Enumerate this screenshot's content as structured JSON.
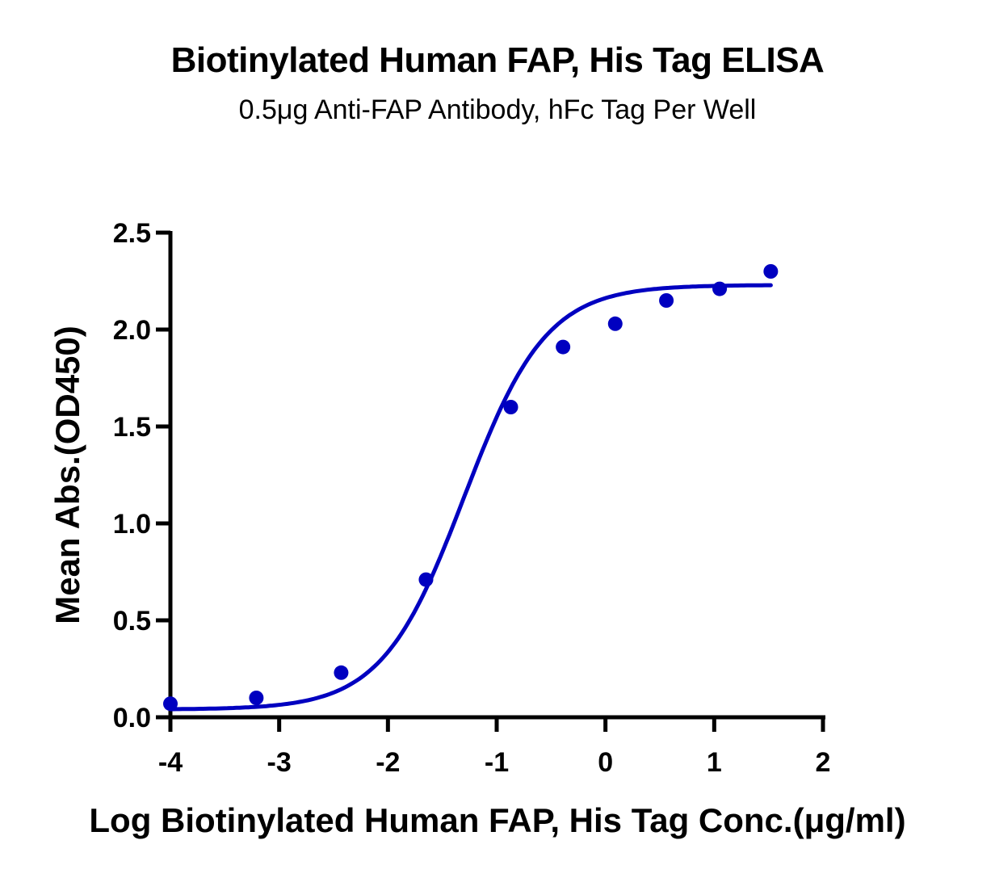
{
  "chart_data": {
    "type": "scatter",
    "title": "Biotinylated Human FAP, His Tag ELISA",
    "subtitle": "0.5μg Anti-FAP Antibody, hFc Tag Per Well",
    "xlabel": "Log Biotinylated Human FAP, His Tag Conc.(μg/ml)",
    "ylabel": "Mean Abs.(OD450)",
    "xlim": [
      -4,
      2
    ],
    "ylim": [
      0,
      2.5
    ],
    "xticks": [
      "-4",
      "-3",
      "-2",
      "-1",
      "0",
      "1",
      "2"
    ],
    "yticks": [
      "0.0",
      "0.5",
      "1.0",
      "1.5",
      "2.0",
      "2.5"
    ],
    "grid": false,
    "legend": null,
    "color": "#0000c0",
    "series": [
      {
        "name": "Mean Abs.",
        "x": [
          -4.0,
          -3.21,
          -2.43,
          -1.65,
          -0.87,
          -0.39,
          0.09,
          0.56,
          1.05,
          1.52
        ],
        "values": [
          0.07,
          0.1,
          0.23,
          0.71,
          1.6,
          1.91,
          2.03,
          2.15,
          2.21,
          2.3
        ]
      }
    ],
    "fit": {
      "type": "4PL sigmoid",
      "bottom": 0.04,
      "top": 2.23,
      "log_ec50": -1.3,
      "hill": 1.15,
      "x_range": [
        -4.0,
        1.52
      ]
    }
  }
}
